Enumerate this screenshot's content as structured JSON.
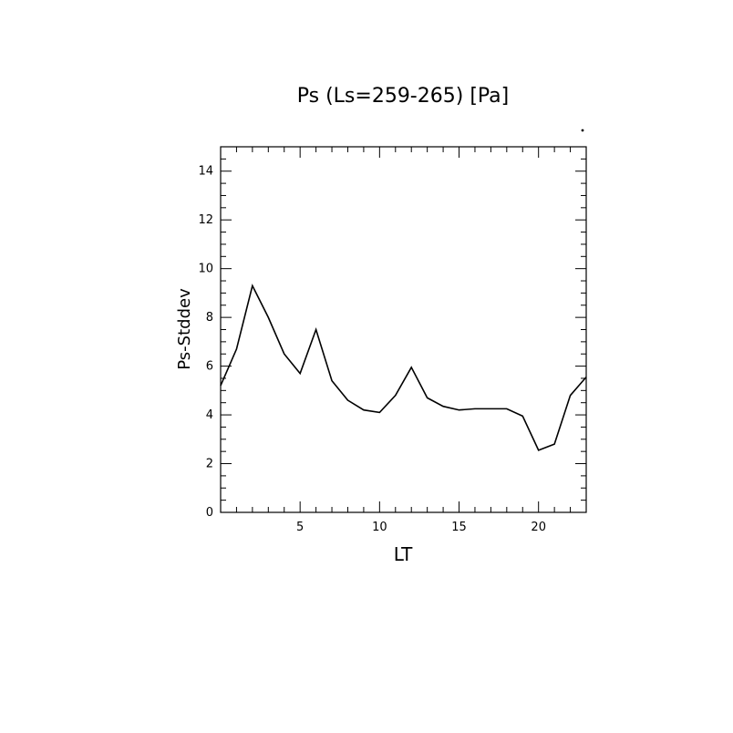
{
  "chart_data": {
    "type": "line",
    "title": "Ps (Ls=259-265) [Pa]",
    "xlabel": "LT",
    "ylabel": "Ps-Stddev",
    "xlim": [
      0,
      23
    ],
    "ylim": [
      0,
      15
    ],
    "x_ticks": [
      5,
      10,
      15,
      20
    ],
    "y_ticks": [
      0,
      2,
      4,
      6,
      8,
      10,
      12,
      14
    ],
    "x_minor_step": 1,
    "y_minor_step": 0.5,
    "grid": false,
    "legend": "none",
    "series": [
      {
        "color": "#000000",
        "x": [
          0,
          1,
          2,
          3,
          4,
          5,
          6,
          7,
          8,
          9,
          10,
          11,
          12,
          13,
          14,
          15,
          16,
          17,
          18,
          19,
          20,
          21,
          22,
          23
        ],
        "y": [
          5.2,
          6.7,
          9.3,
          8.0,
          6.5,
          5.7,
          7.5,
          5.4,
          4.6,
          4.2,
          4.1,
          4.8,
          5.95,
          4.7,
          4.35,
          4.2,
          4.25,
          4.25,
          4.25,
          3.95,
          2.55,
          2.8,
          4.8,
          5.55
        ]
      }
    ]
  }
}
